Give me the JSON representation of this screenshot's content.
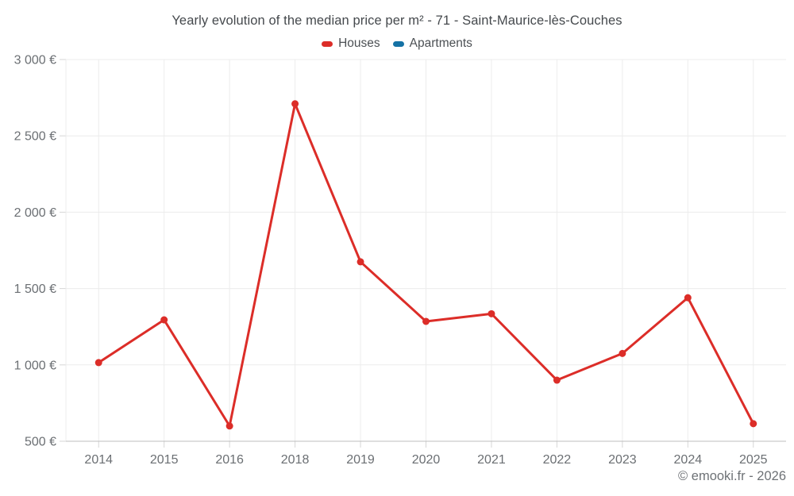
{
  "title": "Yearly evolution of the median price per m² - 71 - Saint-Maurice-lès-Couches",
  "legend": {
    "items": [
      {
        "label": "Houses",
        "color": "#dc2d28"
      },
      {
        "label": "Apartments",
        "color": "#1572a5"
      }
    ]
  },
  "footer": {
    "credit": "© emooki.fr - 2026"
  },
  "colors": {
    "houses_series": "#dc2d28",
    "apartments_series": "#1572a5",
    "grid": "#ececec",
    "axis": "#bdbdbd",
    "tick": "#d6d6d6",
    "text_axis": "#6b6f73",
    "text_title": "#45494d"
  },
  "chart_data": {
    "type": "line",
    "title": "Yearly evolution of the median price per m² - 71 - Saint-Maurice-lès-Couches",
    "x_categories": [
      "2014",
      "2015",
      "2016",
      "2018",
      "2019",
      "2020",
      "2021",
      "2022",
      "2023",
      "2024",
      "2025"
    ],
    "series": [
      {
        "name": "Houses",
        "color": "#dc2d28",
        "values": [
          1015,
          1295,
          600,
          2710,
          1675,
          1285,
          1335,
          900,
          1075,
          1440,
          615
        ]
      },
      {
        "name": "Apartments",
        "color": "#1572a5",
        "values": []
      }
    ],
    "xlabel": "",
    "ylabel": "",
    "ylim": [
      500,
      3000
    ],
    "ytick_step": 500,
    "ytick_labels": [
      "500 €",
      "1 000 €",
      "1 500 €",
      "2 000 €",
      "2 500 €",
      "3 000 €"
    ],
    "grid": true,
    "legend_position": "top",
    "marker": "circle",
    "note": "no data shown for Apartments series; year 2017 absent from x axis"
  }
}
